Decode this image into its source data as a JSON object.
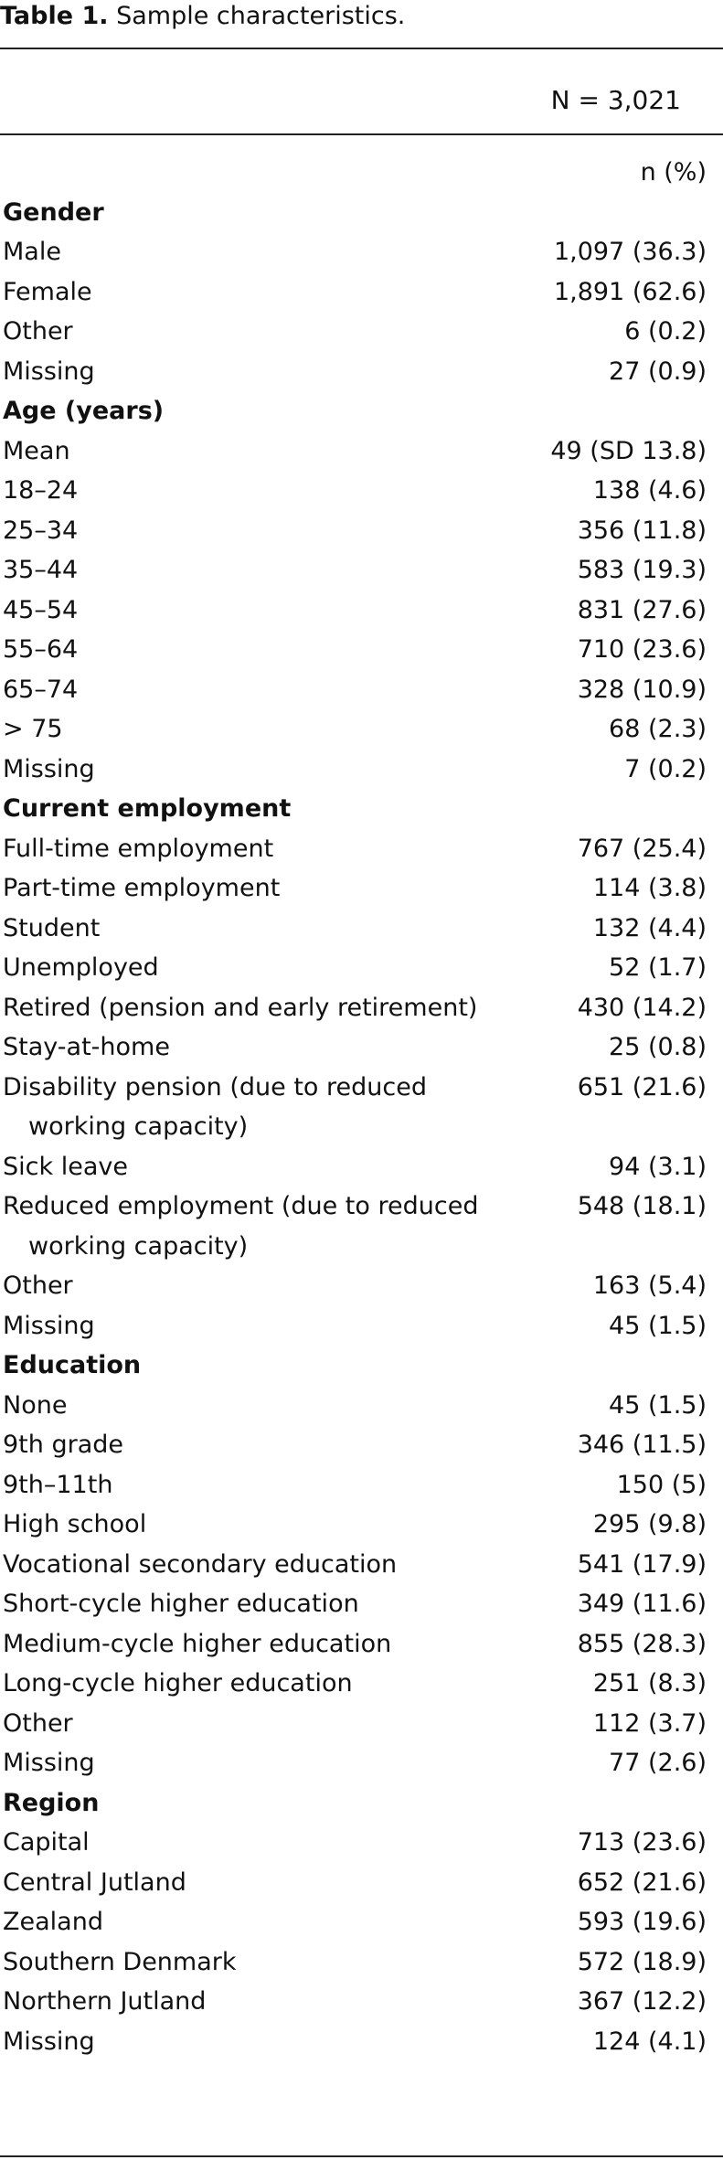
{
  "title": {
    "label": "Table 1.",
    "text": "Sample characteristics."
  },
  "header": {
    "sample": "N = 3,021",
    "unit": "n (%)"
  },
  "sections": [
    {
      "heading": "Gender",
      "rows": [
        {
          "label": "Male",
          "value": "1,097 (36.3)"
        },
        {
          "label": "Female",
          "value": "1,891 (62.6)"
        },
        {
          "label": "Other",
          "value": "6 (0.2)"
        },
        {
          "label": "Missing",
          "value": "27 (0.9)"
        }
      ]
    },
    {
      "heading": "Age (years)",
      "rows": [
        {
          "label": "Mean",
          "value": "49 (SD 13.8)"
        },
        {
          "label": "18–24",
          "value": "138 (4.6)"
        },
        {
          "label": "25–34",
          "value": "356 (11.8)"
        },
        {
          "label": "35–44",
          "value": "583 (19.3)"
        },
        {
          "label": "45–54",
          "value": "831 (27.6)"
        },
        {
          "label": "55–64",
          "value": "710 (23.6)"
        },
        {
          "label": "65–74",
          "value": "328 (10.9)"
        },
        {
          "label": "> 75",
          "value": "68 (2.3)"
        },
        {
          "label": "Missing",
          "value": "7 (0.2)"
        }
      ]
    },
    {
      "heading": "Current employment",
      "rows": [
        {
          "label": "Full-time employment",
          "value": "767 (25.4)"
        },
        {
          "label": "Part-time employment",
          "value": "114 (3.8)"
        },
        {
          "label": "Student",
          "value": "132 (4.4)"
        },
        {
          "label": "Unemployed",
          "value": "52 (1.7)"
        },
        {
          "label": "Retired (pension and early retirement)",
          "value": "430 (14.2)"
        },
        {
          "label": "Stay-at-home",
          "value": "25 (0.8)"
        },
        {
          "label": "Disability pension (due to reduced working capacity)",
          "value": "651 (21.6)"
        },
        {
          "label": "Sick leave",
          "value": "94 (3.1)"
        },
        {
          "label": "Reduced employment (due to reduced working capacity)",
          "value": "548 (18.1)"
        },
        {
          "label": "Other",
          "value": "163 (5.4)"
        },
        {
          "label": "Missing",
          "value": "45 (1.5)"
        }
      ]
    },
    {
      "heading": "Education",
      "rows": [
        {
          "label": "None",
          "value": "45 (1.5)"
        },
        {
          "label": "9th grade",
          "value": "346 (11.5)"
        },
        {
          "label": "9th–11th",
          "value": "150 (5)"
        },
        {
          "label": "High school",
          "value": "295 (9.8)"
        },
        {
          "label": "Vocational secondary education",
          "value": "541 (17.9)"
        },
        {
          "label": "Short-cycle higher education",
          "value": "349 (11.6)"
        },
        {
          "label": "Medium-cycle higher education",
          "value": "855 (28.3)"
        },
        {
          "label": "Long-cycle higher education",
          "value": "251 (8.3)"
        },
        {
          "label": "Other",
          "value": "112 (3.7)"
        },
        {
          "label": "Missing",
          "value": "77 (2.6)"
        }
      ]
    },
    {
      "heading": "Region",
      "rows": [
        {
          "label": "Capital",
          "value": "713 (23.6)"
        },
        {
          "label": "Central Jutland",
          "value": "652 (21.6)"
        },
        {
          "label": "Zealand",
          "value": "593 (19.6)"
        },
        {
          "label": "Southern Denmark",
          "value": "572 (18.9)"
        },
        {
          "label": "Northern Jutland",
          "value": "367 (12.2)"
        },
        {
          "label": "Missing",
          "value": "124 (4.1)"
        }
      ]
    }
  ]
}
